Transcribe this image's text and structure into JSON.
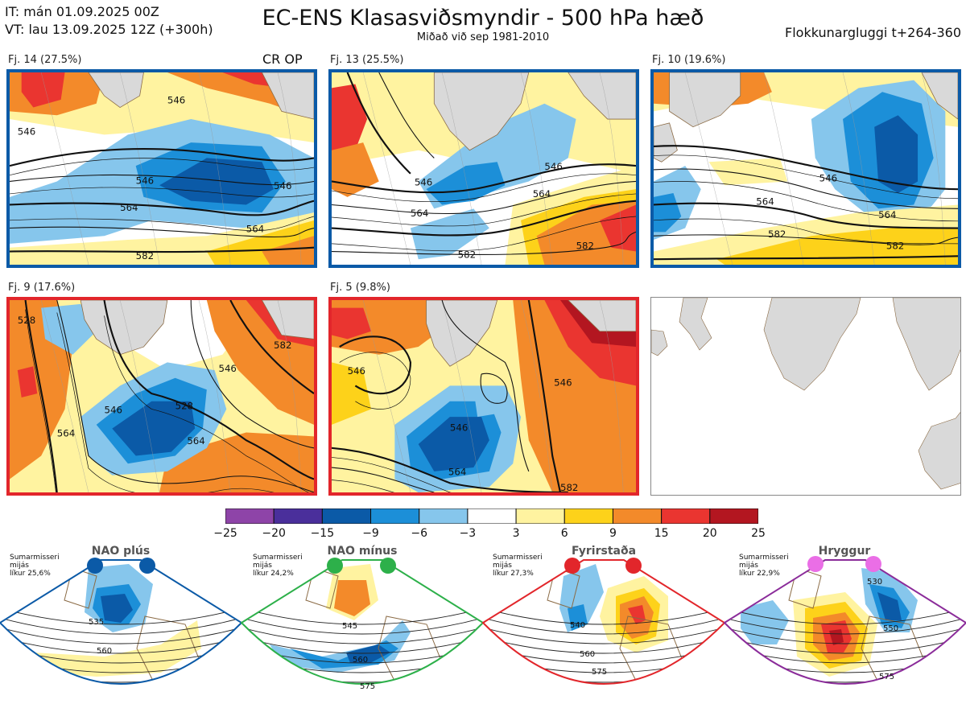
{
  "header": {
    "init_time": "IT: mán 01.09.2025 00Z",
    "valid_time": "VT: lau 13.09.2025 12Z  (+300h)",
    "title": "EC-ENS Klasasviðsmyndir - 500 hPa hæð",
    "subtitle": "Miðað við sep 1981-2010",
    "window": "Flokkunargluggi t+264-360"
  },
  "crop_label": "CR OP",
  "clusters": [
    {
      "label": "Fj. 14 (27.5%)",
      "frame_color": "#0b5aa7",
      "contours": [
        "546",
        "546",
        "564",
        "564",
        "582",
        "546",
        "546"
      ]
    },
    {
      "label": "Fj. 13 (25.5%)",
      "frame_color": "#0b5aa7",
      "contours": [
        "546",
        "546",
        "564",
        "564",
        "582",
        "582"
      ]
    },
    {
      "label": "Fj. 10 (19.6%)",
      "frame_color": "#0b5aa7",
      "contours": [
        "546",
        "564",
        "564",
        "582",
        "582"
      ]
    },
    {
      "label": "Fj. 9 (17.6%)",
      "frame_color": "#e2262b",
      "contours": [
        "546",
        "546",
        "564",
        "564",
        "582",
        "564",
        "528"
      ]
    },
    {
      "label": "Fj. 5 (9.8%)",
      "frame_color": "#e2262b",
      "contours": [
        "546",
        "546",
        "564",
        "564",
        "582",
        "546"
      ]
    }
  ],
  "colorbar": {
    "ticks": [
      "−25",
      "−20",
      "−15",
      "−9",
      "−6",
      "−3",
      "3",
      "6",
      "9",
      "15",
      "20",
      "25"
    ],
    "colors": [
      "#8e44a8",
      "#4a2f9b",
      "#0b5aa7",
      "#1c8fd8",
      "#86c6ec",
      "#ffffff",
      "#fff3a0",
      "#fdd21a",
      "#f38a2a",
      "#ea3530",
      "#b31620"
    ]
  },
  "regimes": [
    {
      "title": "NAO plús",
      "note_l1": "Sumarmisseri",
      "note_l2": "mijás",
      "note_l3": "líkur 25,6%",
      "dot_color": "#0b5aa7",
      "frame_color": "#0b5aa7",
      "contours": [
        "535",
        "560"
      ]
    },
    {
      "title": "NAO mínus",
      "note_l1": "Sumarmisseri",
      "note_l2": "mijás",
      "note_l3": "líkur 24,2%",
      "dot_color": "#2db04a",
      "frame_color": "#2db04a",
      "contours": [
        "545",
        "560",
        "575"
      ]
    },
    {
      "title": "Fyrirstaða",
      "note_l1": "Sumarmisseri",
      "note_l2": "mijás",
      "note_l3": "líkur 27,3%",
      "dot_color": "#e2262b",
      "frame_color": "#e2262b",
      "contours": [
        "540",
        "560",
        "575"
      ]
    },
    {
      "title": "Hryggur",
      "note_l1": "Sumarmisseri",
      "note_l2": "mijás",
      "note_l3": "líkur 22,9%",
      "dot_color": "#ea6ee6",
      "frame_color": "#8b2c9a",
      "contours": [
        "530",
        "550",
        "575"
      ]
    }
  ]
}
